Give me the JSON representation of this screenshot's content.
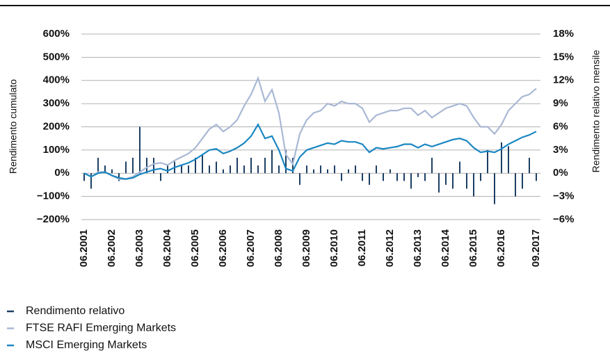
{
  "chart_data": {
    "type": "bar-line",
    "ylabel": "Rendimento cumulato",
    "y2label": "Rendimento relativo mensile",
    "categories": [
      "06.2001",
      null,
      null,
      null,
      "06.2002",
      null,
      null,
      null,
      "06.2003",
      null,
      null,
      null,
      "06.2004",
      null,
      null,
      null,
      "06.2005",
      null,
      null,
      null,
      "06.2006",
      null,
      null,
      null,
      "06.2007",
      null,
      null,
      null,
      "06.2008",
      null,
      null,
      null,
      "06.2009",
      null,
      null,
      null,
      "06.2010",
      null,
      null,
      null,
      "06.2011",
      null,
      null,
      null,
      "06.2012",
      null,
      null,
      null,
      "06.2013",
      null,
      null,
      null,
      "06.2014",
      null,
      null,
      null,
      "06.2015",
      null,
      null,
      null,
      "06.2016",
      null,
      null,
      null,
      null,
      "09.2017"
    ],
    "series": [
      {
        "name": "Rendimento relativo",
        "color": "#1c3f63",
        "kind": "bar",
        "axis": "y2",
        "values": [
          -1,
          -2,
          2,
          1,
          0.5,
          -1,
          1.5,
          2,
          6,
          2,
          2,
          -1,
          1,
          1.5,
          1,
          1,
          2,
          2.5,
          1,
          1.5,
          0.5,
          1,
          2,
          1,
          2,
          1,
          2,
          3,
          1,
          3,
          2,
          -1.5,
          1,
          0.5,
          1,
          0.5,
          1,
          -1,
          0.5,
          1,
          -1,
          -1.5,
          1,
          -1,
          0.5,
          -1,
          -1,
          -2,
          -0.5,
          -1,
          2,
          -2.5,
          -1.5,
          -2,
          1.5,
          -2,
          -3,
          -1,
          3,
          -4,
          4,
          3.5,
          -3,
          -2,
          2,
          -1
        ]
      },
      {
        "name": "FTSE RAFI Emerging Markets",
        "color": "#a9b8d4",
        "kind": "line",
        "values": [
          0,
          -15,
          5,
          5,
          -10,
          -25,
          -25,
          -15,
          5,
          25,
          40,
          45,
          35,
          55,
          70,
          85,
          110,
          150,
          190,
          210,
          180,
          200,
          230,
          290,
          340,
          410,
          310,
          360,
          260,
          80,
          40,
          170,
          230,
          260,
          270,
          300,
          290,
          310,
          300,
          300,
          280,
          220,
          250,
          260,
          270,
          270,
          280,
          280,
          250,
          270,
          240,
          260,
          280,
          290,
          300,
          290,
          240,
          200,
          200,
          170,
          210,
          270,
          300,
          330,
          340,
          365
        ]
      },
      {
        "name": "MSCI Emerging Markets",
        "color": "#1a87c2",
        "kind": "line",
        "values": [
          0,
          -15,
          0,
          5,
          -10,
          -20,
          -25,
          -20,
          -5,
          5,
          15,
          20,
          10,
          25,
          35,
          45,
          60,
          80,
          100,
          105,
          85,
          95,
          110,
          130,
          160,
          210,
          150,
          160,
          100,
          20,
          10,
          70,
          100,
          110,
          120,
          130,
          125,
          140,
          135,
          135,
          125,
          90,
          110,
          105,
          110,
          115,
          125,
          125,
          110,
          125,
          115,
          125,
          135,
          145,
          150,
          140,
          110,
          90,
          95,
          90,
          105,
          125,
          140,
          155,
          165,
          180
        ]
      }
    ],
    "ylim": [
      -200,
      600
    ],
    "yticks": [
      {
        "value": -200,
        "label": "−200%"
      },
      {
        "value": -100,
        "label": "−100%"
      },
      {
        "value": 0,
        "label": "0%"
      },
      {
        "value": 100,
        "label": "100%"
      },
      {
        "value": 200,
        "label": "200%"
      },
      {
        "value": 300,
        "label": "300%"
      },
      {
        "value": 400,
        "label": "400%"
      },
      {
        "value": 500,
        "label": "500%"
      },
      {
        "value": 600,
        "label": "600%"
      }
    ],
    "y2lim": [
      -6,
      18
    ],
    "y2ticks": [
      {
        "value": -6,
        "label": "−6%"
      },
      {
        "value": -3,
        "label": "−3%"
      },
      {
        "value": 0,
        "label": "0%"
      },
      {
        "value": 3,
        "label": "3%"
      },
      {
        "value": 6,
        "label": "6%"
      },
      {
        "value": 9,
        "label": "9%"
      },
      {
        "value": 12,
        "label": "12%"
      },
      {
        "value": 15,
        "label": "15%"
      },
      {
        "value": 18,
        "label": "18%"
      }
    ],
    "grid": true
  }
}
